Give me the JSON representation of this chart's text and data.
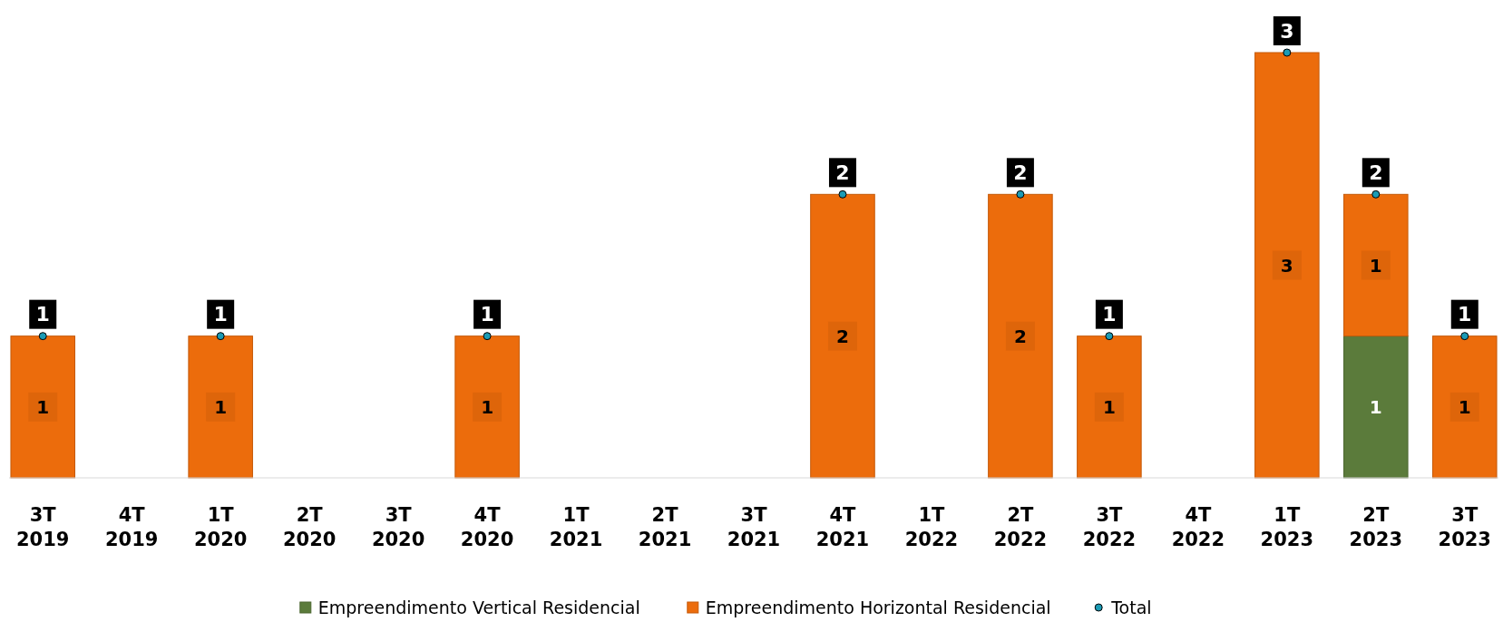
{
  "chart_data": {
    "type": "bar",
    "stacked": true,
    "categories": [
      "3T 2019",
      "4T 2019",
      "1T 2020",
      "2T 2020",
      "3T 2020",
      "4T 2020",
      "1T 2021",
      "2T 2021",
      "3T 2021",
      "4T 2021",
      "1T 2022",
      "2T 2022",
      "3T 2022",
      "4T 2022",
      "1T 2023",
      "2T 2023",
      "3T 2023"
    ],
    "series": [
      {
        "name": "Empreendimento Vertical Residencial",
        "color": "#5b7b3b",
        "values": [
          null,
          null,
          null,
          null,
          null,
          null,
          null,
          null,
          null,
          null,
          null,
          null,
          null,
          null,
          null,
          1,
          null
        ]
      },
      {
        "name": "Empreendimento Horizontal Residencial",
        "color": "#ec6c0c",
        "values": [
          1,
          null,
          1,
          null,
          null,
          1,
          null,
          null,
          null,
          2,
          null,
          2,
          1,
          null,
          3,
          1,
          1
        ]
      },
      {
        "name": "Total",
        "type": "scatter",
        "color": "#1b9bb5",
        "values": [
          1,
          null,
          1,
          null,
          null,
          1,
          null,
          null,
          null,
          2,
          null,
          2,
          1,
          null,
          3,
          2,
          1
        ]
      }
    ],
    "data_labels": true,
    "legend": "bottom",
    "marker": "circle",
    "tick_labels": "x"
  }
}
